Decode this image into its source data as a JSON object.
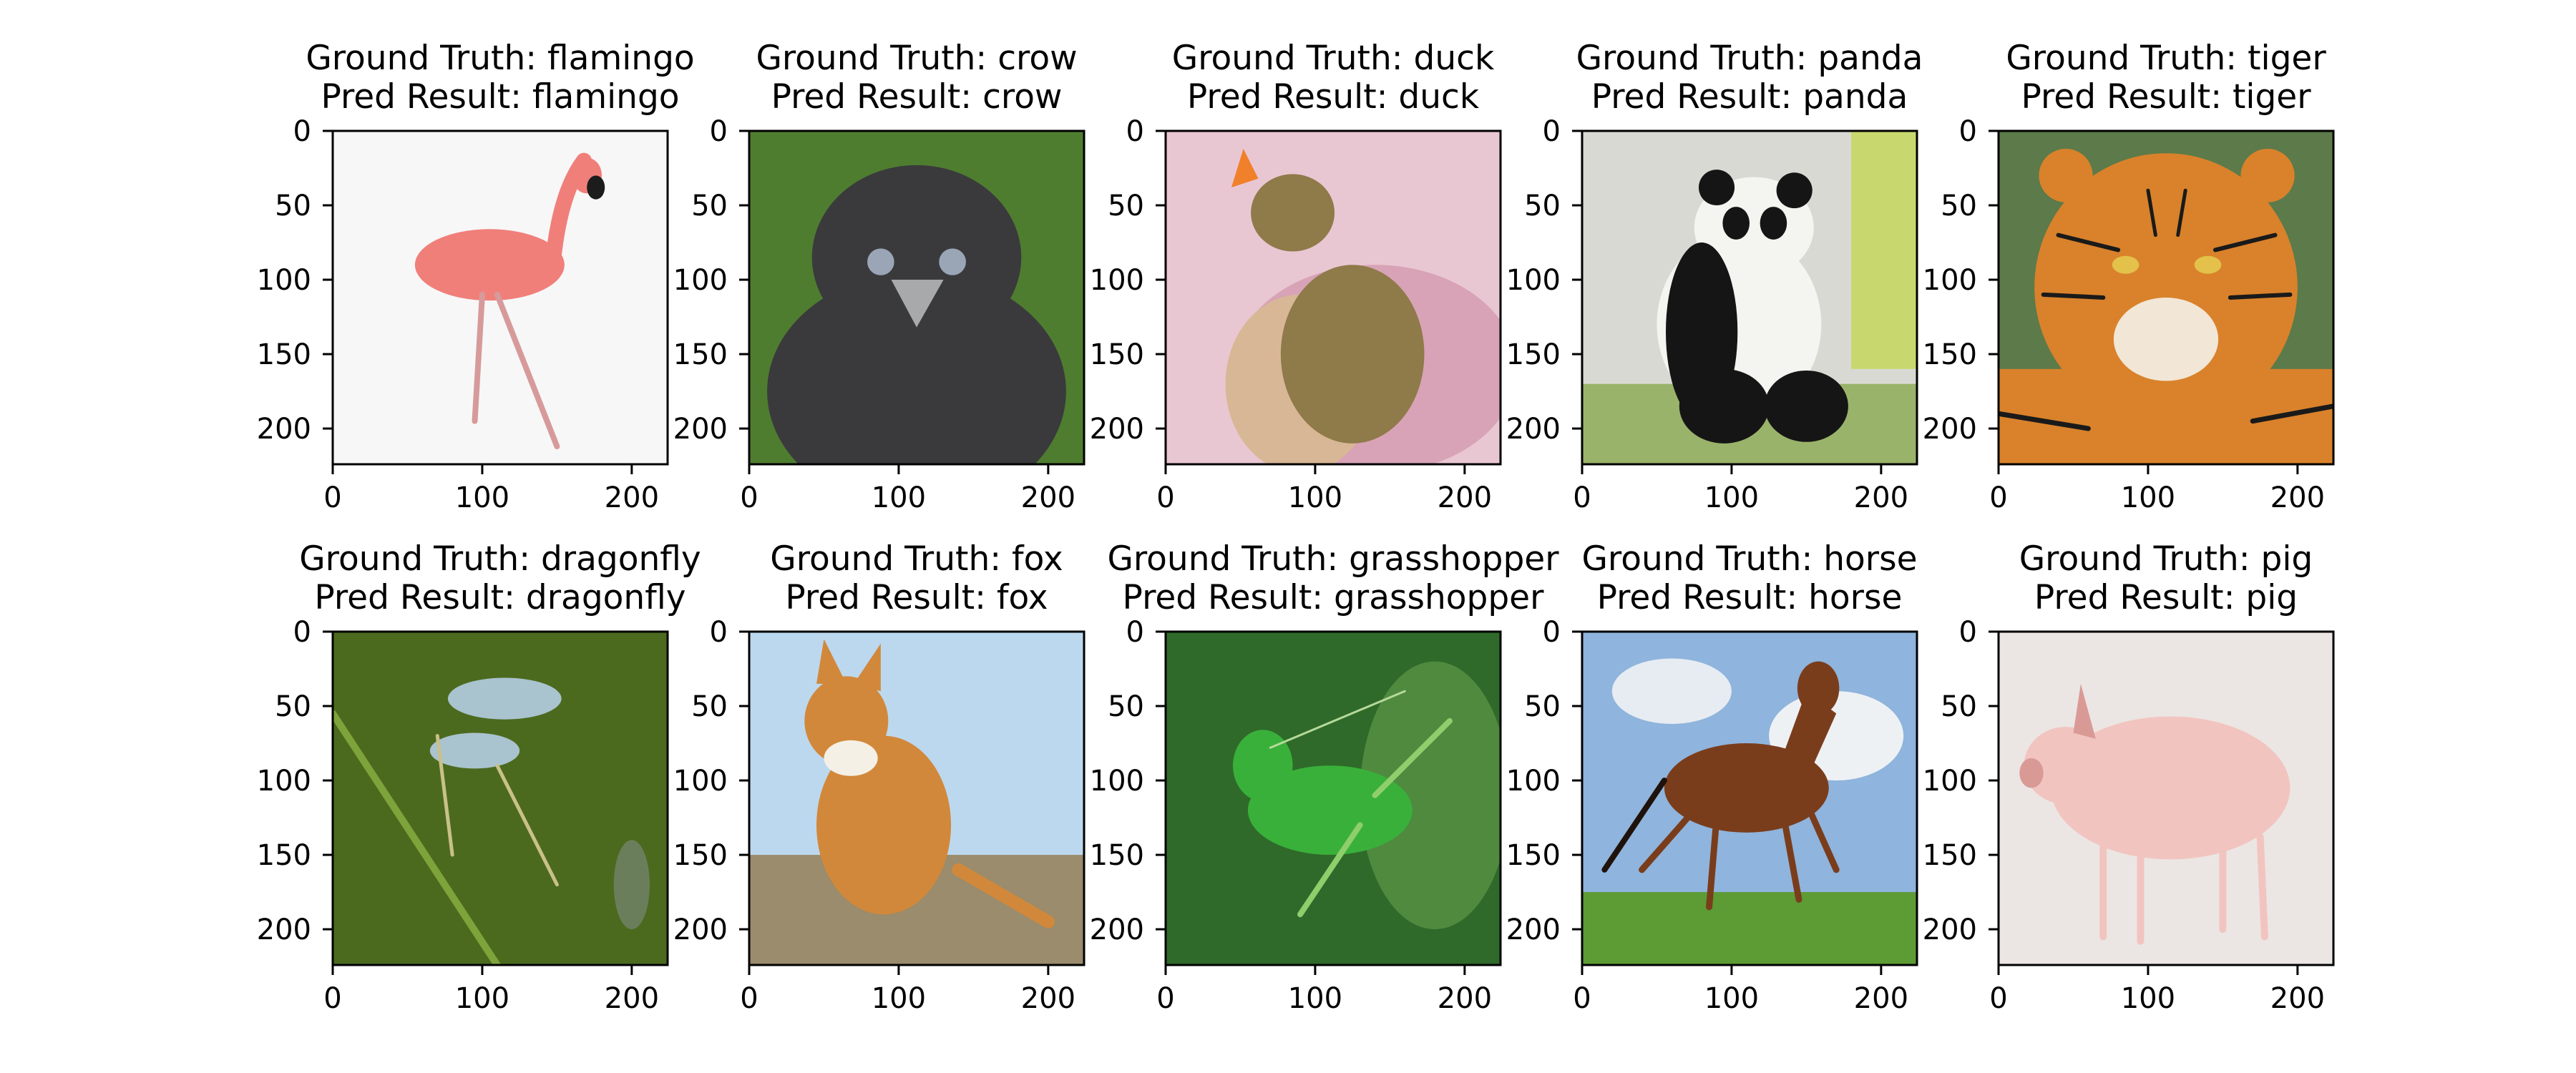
{
  "chart_data": {
    "type": "image_grid",
    "rows": 2,
    "cols": 5,
    "axes": {
      "xlim": [
        0,
        224
      ],
      "ylim": [
        0,
        224
      ],
      "y_inverted": true,
      "xticks": [
        0,
        100,
        200
      ],
      "yticks": [
        0,
        50,
        100,
        150,
        200
      ]
    },
    "title_prefix_truth": "Ground Truth: ",
    "title_prefix_pred": "Pred Result: ",
    "panels": [
      {
        "truth": "flamingo",
        "pred": "flamingo",
        "subject": "flamingo",
        "colors": {
          "bg": "#f7f7f7",
          "main": "#f07f7a",
          "accent": "#1c1c1c"
        }
      },
      {
        "truth": "crow",
        "pred": "crow",
        "subject": "crow",
        "colors": {
          "bg": "#4f7d2f",
          "main": "#3a3a3d",
          "accent": "#9aa6b6"
        }
      },
      {
        "truth": "duck",
        "pred": "duck",
        "subject": "duck",
        "colors": {
          "bg": "#e9c7d2",
          "main": "#8f7a4a",
          "accent": "#f0802a"
        }
      },
      {
        "truth": "panda",
        "pred": "panda",
        "subject": "panda",
        "colors": {
          "bg": "#d9d9d4",
          "main": "#151515",
          "accent": "#f4f4f0"
        }
      },
      {
        "truth": "tiger",
        "pred": "tiger",
        "subject": "tiger",
        "colors": {
          "bg": "#5c7a4a",
          "main": "#d9822b",
          "accent": "#1a1a1a"
        }
      },
      {
        "truth": "dragonfly",
        "pred": "dragonfly",
        "subject": "dragonfly",
        "colors": {
          "bg": "#4c6a1e",
          "main": "#a9c3cf",
          "accent": "#c9c08a"
        }
      },
      {
        "truth": "fox",
        "pred": "fox",
        "subject": "fox",
        "colors": {
          "bg": "#bcd8ee",
          "main": "#d2883a",
          "accent": "#f4f0e6"
        }
      },
      {
        "truth": "grasshopper",
        "pred": "grasshopper",
        "subject": "grasshopper",
        "colors": {
          "bg": "#2f6a2a",
          "main": "#39b03a",
          "accent": "#8fce6c"
        }
      },
      {
        "truth": "horse",
        "pred": "horse",
        "subject": "horse",
        "colors": {
          "bg": "#8fb4dd",
          "main": "#7a3d1c",
          "accent": "#5d9b35"
        }
      },
      {
        "truth": "pig",
        "pred": "pig",
        "subject": "pig",
        "colors": {
          "bg": "#ebe6e3",
          "main": "#f2c4c0",
          "accent": "#d99a96"
        }
      }
    ]
  }
}
